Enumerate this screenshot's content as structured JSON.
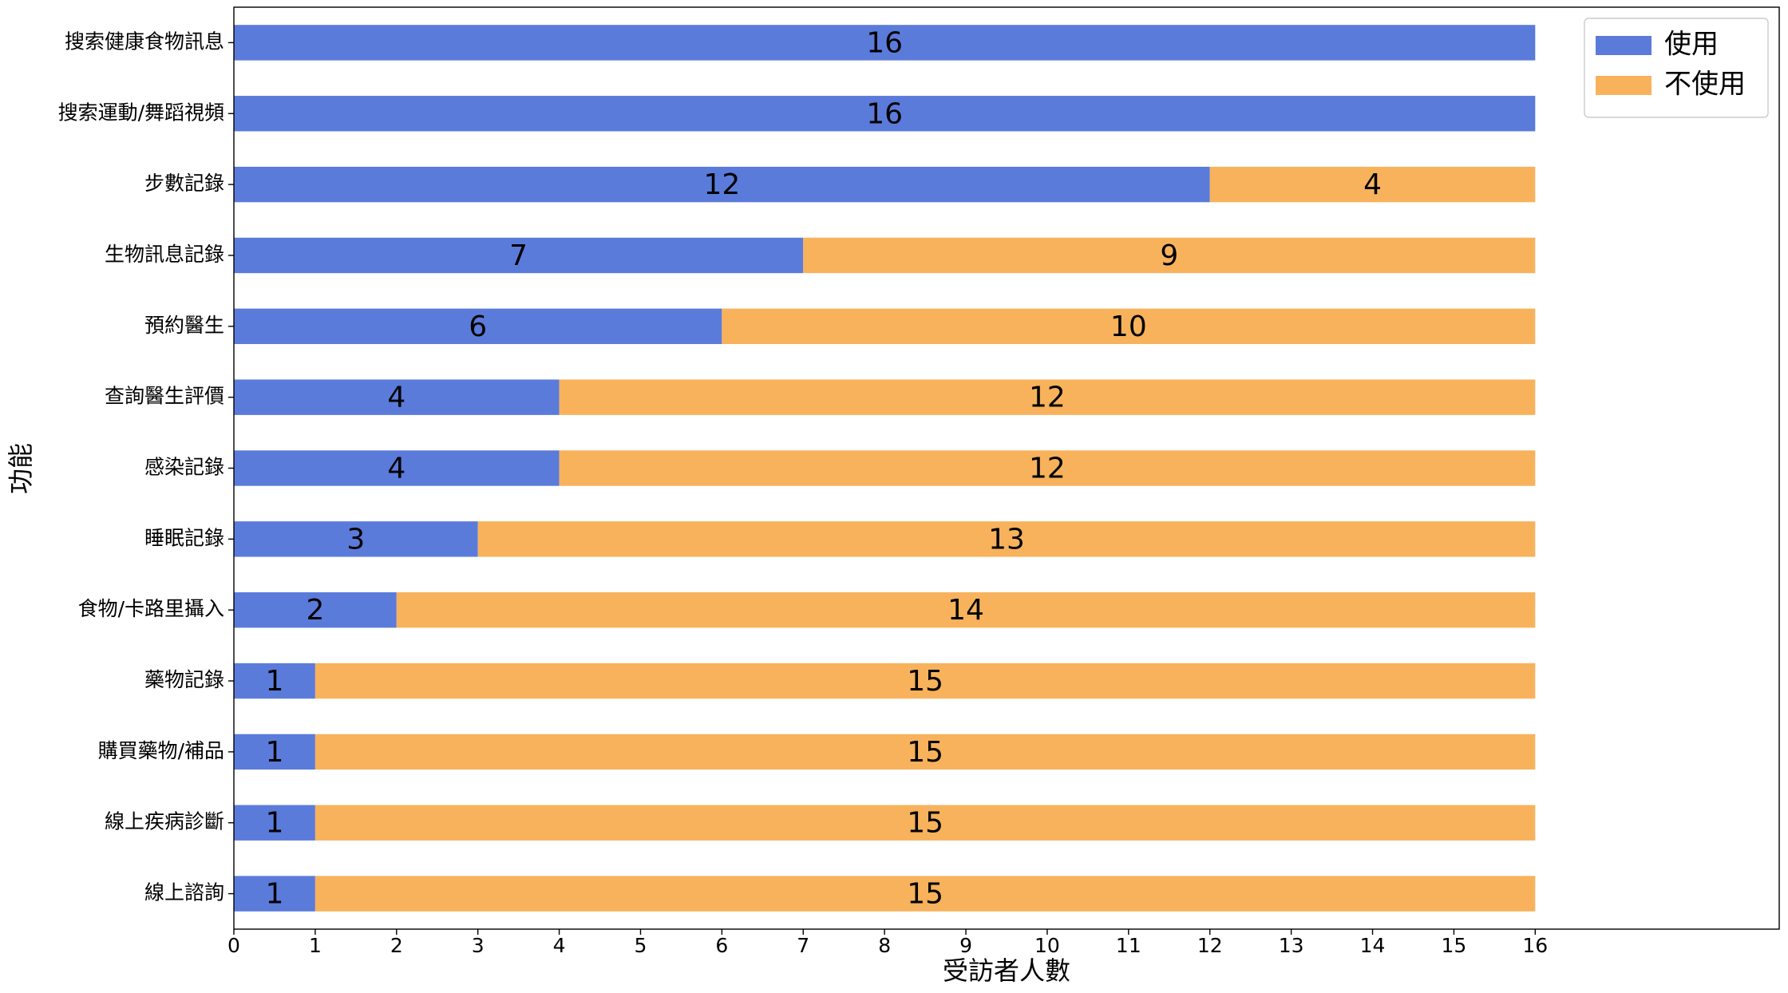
{
  "chart_data": {
    "type": "stacked-barh",
    "xlabel": "受訪者人數",
    "ylabel": "功能",
    "categories": [
      "搜索健康食物訊息",
      "搜索運動/舞蹈視頻",
      "步數記錄",
      "生物訊息記錄",
      "預約醫生",
      "查詢醫生評價",
      "感染記錄",
      "睡眠記錄",
      "食物/卡路里攝入",
      "藥物記錄",
      "購買藥物/補品",
      "線上疾病診斷",
      "線上諮詢"
    ],
    "series": [
      {
        "name": "使用",
        "color": "#5b7bdb",
        "values": [
          16,
          16,
          12,
          7,
          6,
          4,
          4,
          3,
          2,
          1,
          1,
          1,
          1
        ]
      },
      {
        "name": "不使用",
        "color": "#f8b25c",
        "values": [
          0,
          0,
          4,
          9,
          10,
          12,
          12,
          13,
          14,
          15,
          15,
          15,
          15
        ]
      }
    ],
    "xlim": [
      0,
      19
    ],
    "xticks": [
      0,
      1,
      2,
      3,
      4,
      5,
      6,
      7,
      8,
      9,
      10,
      11,
      12,
      13,
      14,
      15,
      16
    ],
    "legend": "upper right"
  }
}
